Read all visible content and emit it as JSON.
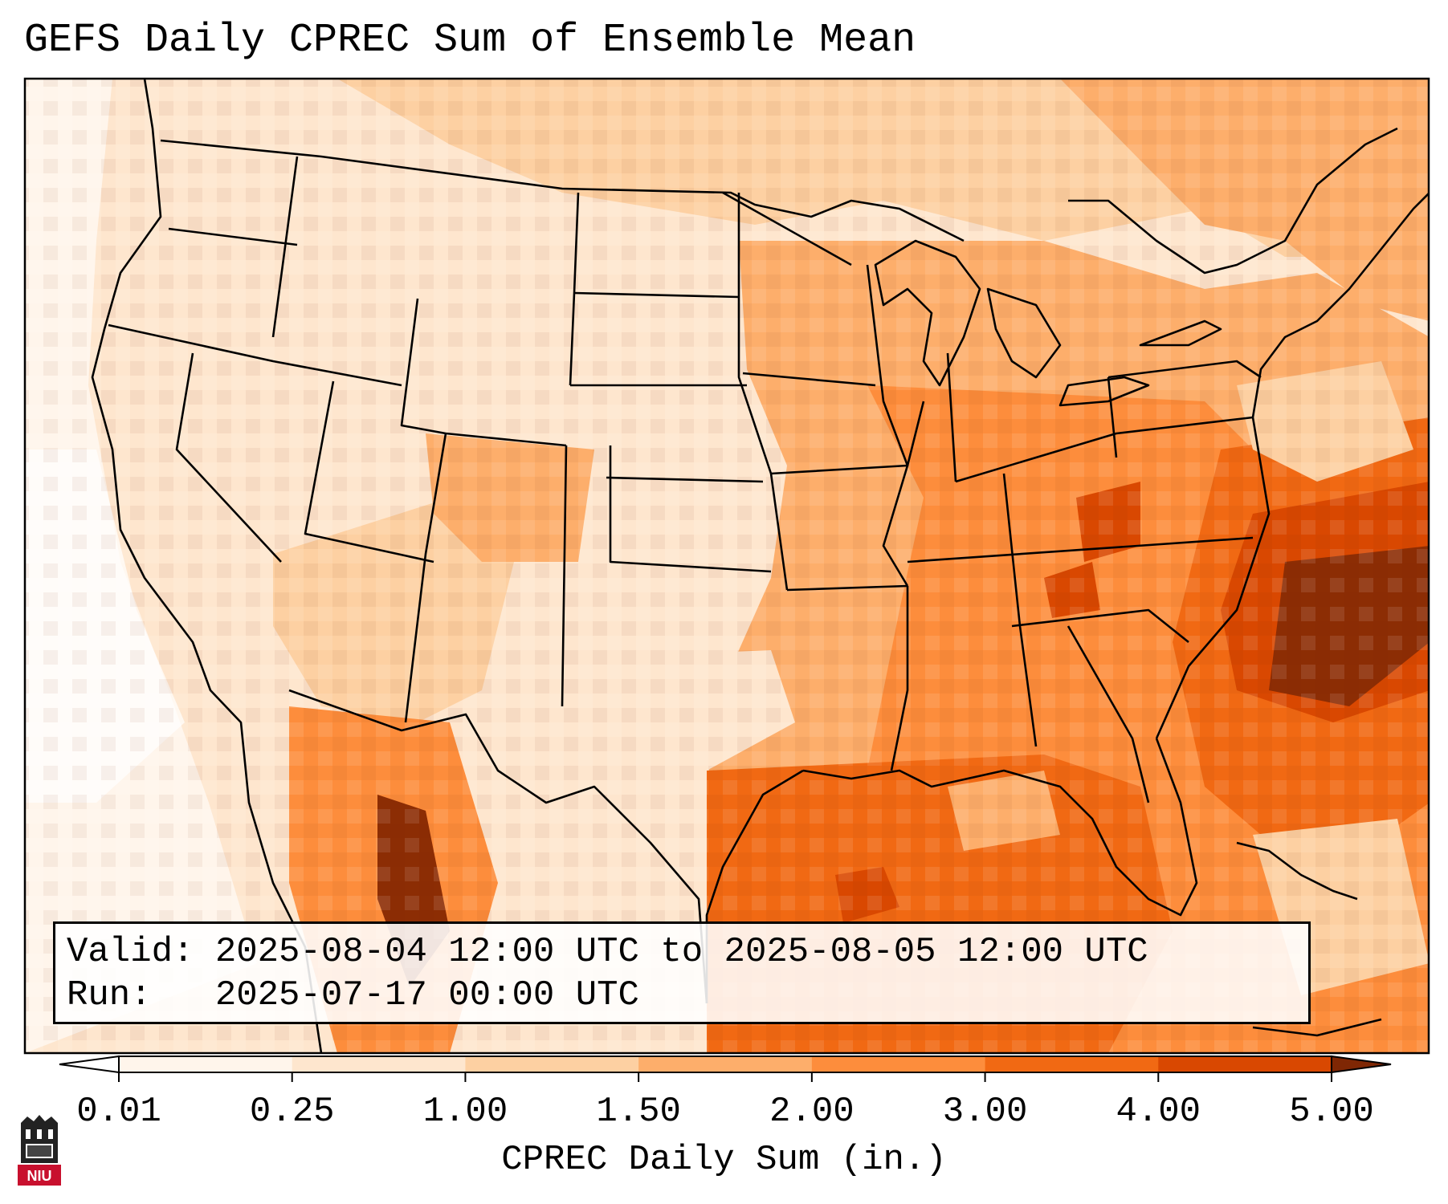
{
  "title": "GEFS Daily CPREC Sum of Ensemble Mean",
  "info": {
    "valid_label": "Valid:",
    "valid_value": "2025-08-04 12:00 UTC to 2025-08-05 12:00 UTC",
    "run_label": "Run:",
    "run_value": "2025-07-17 00:00 UTC"
  },
  "colorbar": {
    "label": "CPREC Daily Sum (in.)",
    "ticks": [
      "0.01",
      "0.25",
      "1.00",
      "1.50",
      "2.00",
      "3.00",
      "4.00",
      "5.00"
    ],
    "colors": [
      "#fff5eb",
      "#fee6ce",
      "#fdd0a2",
      "#fdae6b",
      "#fd8d3c",
      "#f16913",
      "#d94801",
      "#8c2d04"
    ],
    "under_color": "#ffffff",
    "over_color": "#7f2704",
    "extend": "both"
  },
  "logo": {
    "text": "NIU",
    "color": "#c8102e"
  },
  "map": {
    "projection": "Lambert conformal",
    "region": "CONUS",
    "field": "CPREC Daily Sum",
    "units": "in."
  }
}
